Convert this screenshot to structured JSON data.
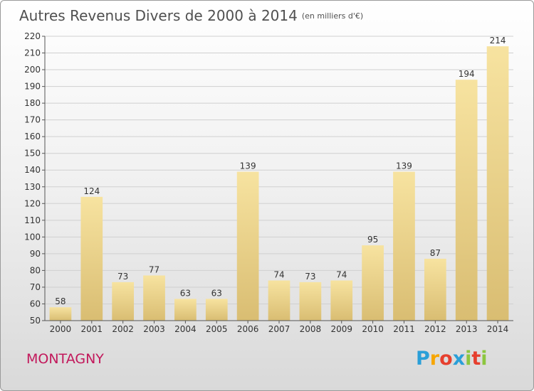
{
  "title": "Autres Revenus Divers de 2000 à 2014",
  "unit": "(en milliers d'€)",
  "city": "MONTAGNY",
  "logo": {
    "letters": [
      "P",
      "r",
      "o",
      "x",
      "i",
      "t",
      "i"
    ],
    "colors": [
      "#2a9fd8",
      "#f7a600",
      "#e63f2e",
      "#2a9fd8",
      "#8cc63f",
      "#e63f2e",
      "#8cc63f"
    ]
  },
  "colors": {
    "bar_top": "#f7e3a0",
    "bar_bottom": "#d9bd72",
    "grid": "#d0d0d0"
  },
  "chart_data": {
    "type": "bar",
    "categories": [
      "2000",
      "2001",
      "2002",
      "2003",
      "2004",
      "2005",
      "2006",
      "2007",
      "2008",
      "2009",
      "2010",
      "2011",
      "2012",
      "2013",
      "2014"
    ],
    "values": [
      58,
      124,
      73,
      77,
      63,
      63,
      139,
      74,
      73,
      74,
      95,
      139,
      87,
      194,
      214
    ],
    "ylim": [
      50,
      220
    ],
    "yticks": [
      50,
      60,
      70,
      80,
      90,
      100,
      110,
      120,
      130,
      140,
      150,
      160,
      170,
      180,
      190,
      200,
      210,
      220
    ],
    "grid": true
  }
}
